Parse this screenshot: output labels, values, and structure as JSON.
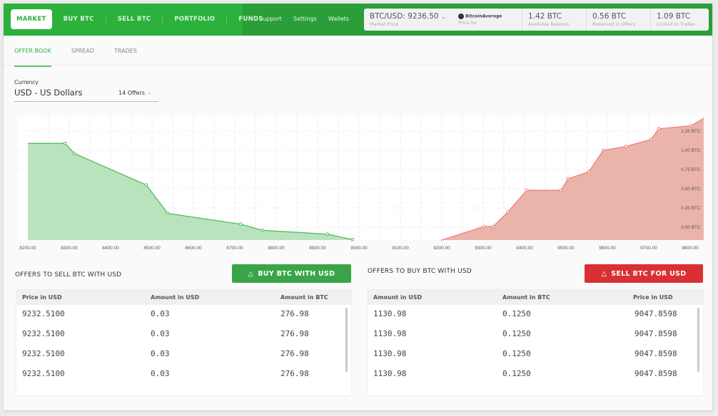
{
  "nav": {
    "items": [
      "MARKET",
      "BUY BTC",
      "SELL BTC",
      "PORTFOLIO",
      "FUNDS"
    ],
    "secondary": [
      "Support",
      "Settings",
      "Wallets"
    ]
  },
  "balances": {
    "market_price": "BTC/USD: 9236.50",
    "market_price_label": "Market Price",
    "price_by_brand": "BitcoinAverage",
    "price_by_label": "Price by",
    "available": "1.42 BTC",
    "available_label": "Available Balance",
    "reserved": "0.56 BTC",
    "reserved_label": "Reserved in Offers",
    "locked": "1.09 BTC",
    "locked_label": "Locked in Trades"
  },
  "tabs": [
    "OFFER BOOK",
    "SPREAD",
    "TRADES"
  ],
  "currency": {
    "label": "Currency",
    "value": "USD - US Dollars",
    "offers": "14 Offers"
  },
  "colors": {
    "brand": "#2bb13c",
    "sell": "#d93033",
    "bid_fill": "#b9e3bd",
    "ask_fill": "#eab4ab"
  },
  "chart_data": {
    "type": "area",
    "xlim": [
      8200,
      9840
    ],
    "x_ticks": [
      "8200.00",
      "8300.00",
      "8400.00",
      "8500.00",
      "8600.00",
      "8700.00",
      "8800.00",
      "8900.00",
      "9000.00",
      "9100.00",
      "9200.00",
      "9300.00",
      "9400.00",
      "9500.00",
      "9600.00",
      "9700.00",
      "9800.00"
    ],
    "y_ticks": [
      "0.00 BTC",
      "0.25 BTC",
      "0.50 BTC",
      "0.75 BTC",
      "1.00 BTC",
      "1.25 BTC"
    ],
    "series": [
      {
        "side": "bid",
        "points": [
          [
            8200,
            1.09
          ],
          [
            8290,
            1.09
          ],
          [
            8312,
            0.96
          ],
          [
            8486,
            0.55
          ],
          [
            8538,
            0.18
          ],
          [
            8714,
            0.04
          ],
          [
            8767,
            -0.04
          ],
          [
            8924,
            -0.09
          ],
          [
            8984,
            -0.16
          ]
        ]
      },
      {
        "side": "ask",
        "points": [
          [
            9198,
            -0.17
          ],
          [
            9302,
            0.01
          ],
          [
            9324,
            0.01
          ],
          [
            9360,
            0.2
          ],
          [
            9405,
            0.48
          ],
          [
            9488,
            0.48
          ],
          [
            9505,
            0.63
          ],
          [
            9555,
            0.72
          ],
          [
            9590,
            1.0
          ],
          [
            9645,
            1.05
          ],
          [
            9705,
            1.14
          ],
          [
            9724,
            1.28
          ],
          [
            9803,
            1.32
          ],
          [
            9840,
            1.44
          ]
        ]
      }
    ]
  },
  "sell_offers": {
    "title": "OFFERS TO SELL BTC WITH USD",
    "button": "BUY BTC WITH USD",
    "columns": [
      "Price in USD",
      "Amount in USD",
      "Amount in BTC"
    ],
    "rows": [
      [
        "9232.5100",
        "0.03",
        "276.98"
      ],
      [
        "9232.5100",
        "0.03",
        "276.98"
      ],
      [
        "9232.5100",
        "0.03",
        "276.98"
      ],
      [
        "9232.5100",
        "0.03",
        "276.98"
      ]
    ]
  },
  "buy_offers": {
    "title": "OFFERS TO BUY BTC WITH USD",
    "button": "SELL BTC FOR USD",
    "columns": [
      "Amount in USD",
      "Amount in BTC",
      "Price in USD"
    ],
    "rows": [
      [
        "1130.98",
        "0.1250",
        "9047.8598"
      ],
      [
        "1130.98",
        "0.1250",
        "9047.8598"
      ],
      [
        "1130.98",
        "0.1250",
        "9047.8598"
      ],
      [
        "1130.98",
        "0.1250",
        "9047.8598"
      ]
    ]
  }
}
